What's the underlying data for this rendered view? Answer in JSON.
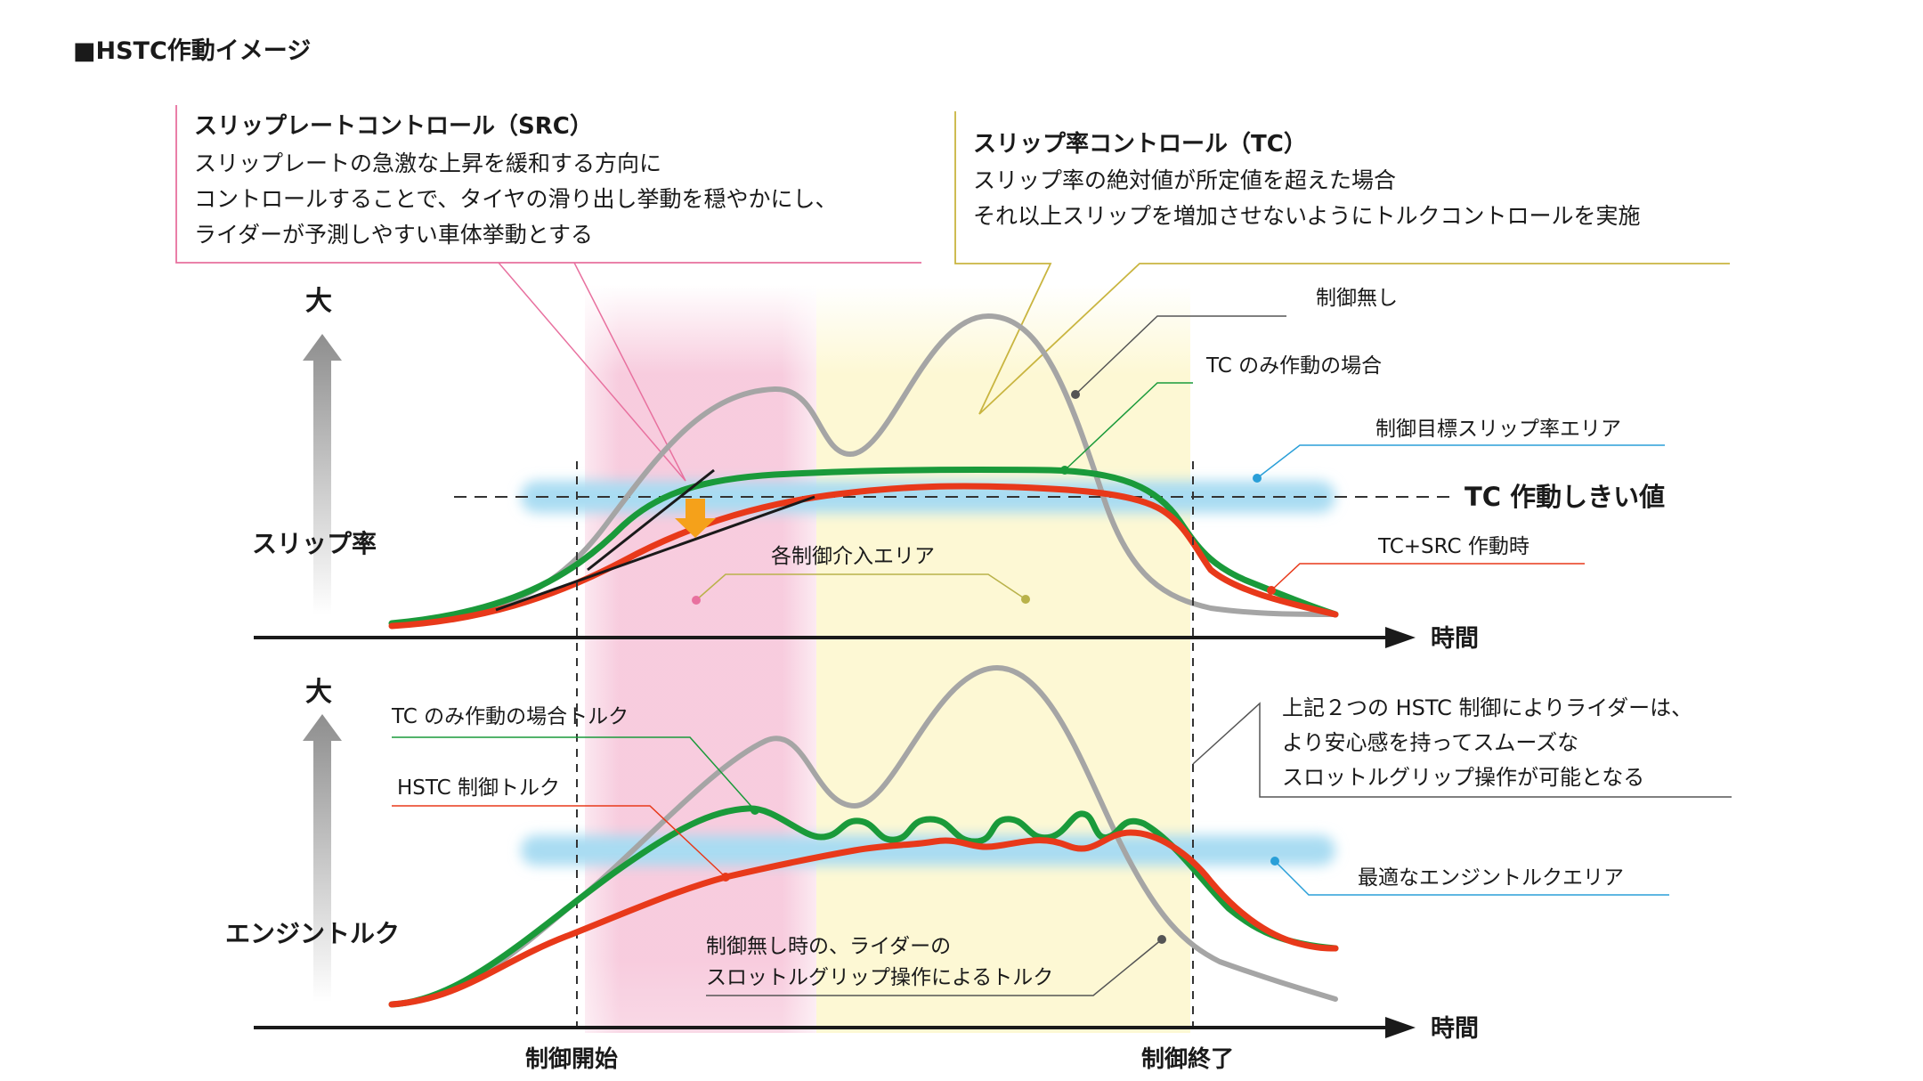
{
  "title": "■HSTC作動イメージ",
  "colors": {
    "no_control": "#a5a5a5",
    "tc_only": "#1a9a3a",
    "hstc": "#e8391a",
    "src_area": "#f7c9dc",
    "tc_area": "#fdf8d4",
    "band": "#a9dcf2",
    "arrow": "#f5a11a",
    "axis": "#1a1a1a"
  },
  "src_box": {
    "title": "スリップレートコントロール（SRC）",
    "lines": [
      "スリップレートの急激な上昇を緩和する方向に",
      "コントロールすることで、タイヤの滑り出し挙動を穏やかにし、",
      "ライダーが予測しやすい車体挙動とする"
    ]
  },
  "tc_box": {
    "title": "スリップ率コントロール（TC）",
    "lines": [
      "スリップ率の絶対値が所定値を超えた場合",
      "それ以上スリップを増加させないようにトルクコントロールを実施"
    ]
  },
  "upper_chart": {
    "y_big_label": "大",
    "y_label": "スリップ率",
    "x_label": "時間",
    "threshold_label": "TC 作動しきい値",
    "labels": {
      "no_control": "制御無し",
      "tc_only": "TC のみ作動の場合",
      "target_area": "制御目標スリップ率エリア",
      "hstc": "TC+SRC 作動時",
      "intervention_area": "各制御介入エリア"
    }
  },
  "lower_chart": {
    "y_big_label": "大",
    "y_label": "エンジントルク",
    "x_label": "時間",
    "labels": {
      "tc_torque": "TC のみ作動の場合トルク",
      "hstc_torque": "HSTC 制御トルク",
      "optimal_area": "最適なエンジントルクエリア",
      "no_control_line1": "制御無し時の、ライダーの",
      "no_control_line2": "スロットルグリップ操作によるトルク"
    },
    "note_lines": [
      "上記２つの HSTC 制御によりライダーは、",
      "より安心感を持ってスムーズな",
      "スロットルグリップ操作が可能となる"
    ]
  },
  "time_markers": {
    "start": "制御開始",
    "end": "制御終了"
  }
}
